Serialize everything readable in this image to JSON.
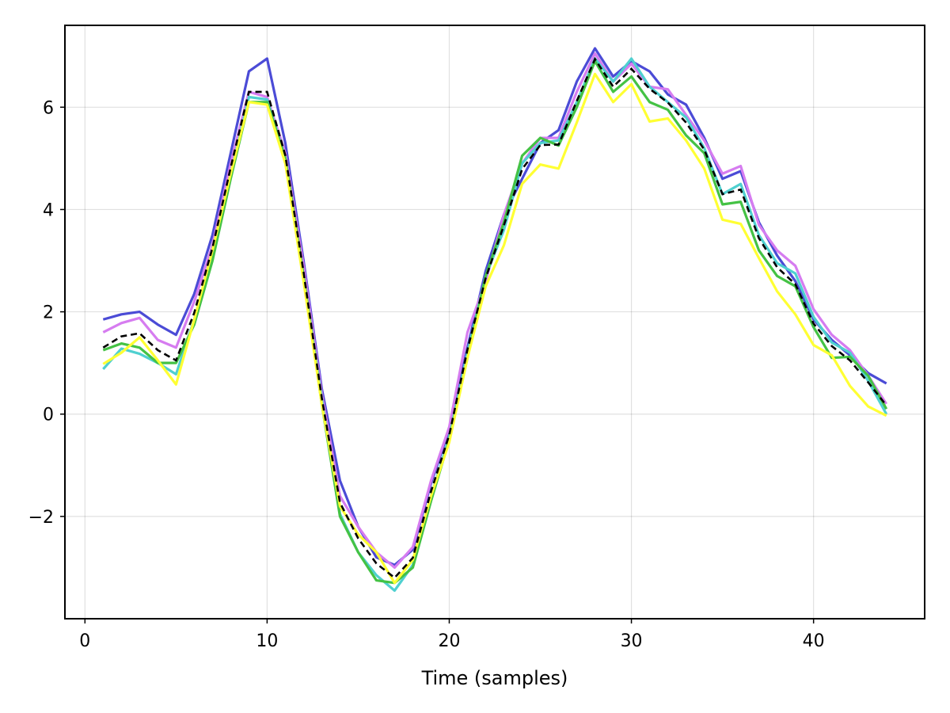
{
  "chart_data": {
    "type": "line",
    "title": "",
    "xlabel": "Time (samples)",
    "ylabel": "",
    "xlim": [
      -1.1,
      46.1
    ],
    "ylim": [
      -4.0,
      7.6
    ],
    "xticks": [
      0,
      10,
      20,
      30,
      40
    ],
    "yticks": [
      -2,
      0,
      2,
      4,
      6
    ],
    "xtick_labels": [
      "0",
      "10",
      "20",
      "30",
      "40"
    ],
    "ytick_labels": [
      "−2",
      "0",
      "2",
      "4",
      "6"
    ],
    "grid": true,
    "x": [
      1,
      2,
      3,
      4,
      5,
      6,
      7,
      8,
      9,
      10,
      11,
      12,
      13,
      14,
      15,
      16,
      17,
      18,
      19,
      20,
      21,
      22,
      23,
      24,
      25,
      26,
      27,
      28,
      29,
      30,
      31,
      32,
      33,
      34,
      35,
      36,
      37,
      38,
      39,
      40,
      41,
      42,
      43,
      44
    ],
    "series": [
      {
        "color": "#4b4bd6",
        "style": "solid",
        "values": [
          1.85,
          1.95,
          2.0,
          1.75,
          1.55,
          2.35,
          3.5,
          5.1,
          6.7,
          6.95,
          5.3,
          3.0,
          0.5,
          -1.3,
          -2.2,
          -2.8,
          -2.95,
          -2.65,
          -1.35,
          -0.3,
          1.3,
          2.8,
          3.9,
          4.6,
          5.3,
          5.55,
          6.5,
          7.15,
          6.6,
          6.9,
          6.7,
          6.25,
          6.05,
          5.4,
          4.6,
          4.75,
          3.75,
          3.1,
          2.6,
          1.85,
          1.45,
          1.15,
          0.8,
          0.6
        ]
      },
      {
        "color": "#d67cf0",
        "style": "solid",
        "values": [
          1.6,
          1.78,
          1.88,
          1.45,
          1.3,
          2.2,
          3.3,
          4.9,
          6.3,
          6.2,
          5.1,
          2.9,
          0.4,
          -1.6,
          -2.2,
          -2.7,
          -3.0,
          -2.6,
          -1.3,
          -0.25,
          1.6,
          2.6,
          3.9,
          4.9,
          5.4,
          5.4,
          6.3,
          7.05,
          6.5,
          6.85,
          6.4,
          6.35,
          5.85,
          5.35,
          4.7,
          4.85,
          3.7,
          3.2,
          2.9,
          2.05,
          1.55,
          1.25,
          0.75,
          0.2
        ]
      },
      {
        "color": "#4fd0d0",
        "style": "solid",
        "values": [
          0.88,
          1.28,
          1.18,
          1.0,
          0.78,
          1.85,
          3.2,
          4.7,
          6.2,
          6.15,
          5.0,
          2.7,
          0.3,
          -1.95,
          -2.7,
          -3.15,
          -3.45,
          -2.95,
          -1.6,
          -0.45,
          1.2,
          2.7,
          3.6,
          4.9,
          5.3,
          5.35,
          6.1,
          6.95,
          6.5,
          6.95,
          6.4,
          6.1,
          5.8,
          5.2,
          4.3,
          4.5,
          3.5,
          2.95,
          2.75,
          1.9,
          1.4,
          1.2,
          0.65,
          0.0
        ]
      },
      {
        "color": "#44c244",
        "style": "solid",
        "values": [
          1.25,
          1.38,
          1.3,
          1.0,
          1.0,
          1.75,
          3.0,
          4.6,
          6.1,
          6.1,
          5.0,
          2.7,
          0.2,
          -2.0,
          -2.7,
          -3.25,
          -3.3,
          -3.0,
          -1.7,
          -0.5,
          1.1,
          2.7,
          3.75,
          5.05,
          5.4,
          5.25,
          6.0,
          6.9,
          6.3,
          6.6,
          6.1,
          5.95,
          5.45,
          5.1,
          4.1,
          4.15,
          3.2,
          2.7,
          2.5,
          1.7,
          1.1,
          1.12,
          0.75,
          0.1
        ]
      },
      {
        "color": "#ffff33",
        "style": "solid",
        "values": [
          0.98,
          1.2,
          1.5,
          1.05,
          0.58,
          1.85,
          3.2,
          4.7,
          6.1,
          6.05,
          4.9,
          2.6,
          0.2,
          -1.8,
          -2.35,
          -2.7,
          -3.3,
          -2.85,
          -1.6,
          -0.55,
          1.1,
          2.5,
          3.3,
          4.5,
          4.88,
          4.8,
          5.7,
          6.65,
          6.1,
          6.45,
          5.72,
          5.78,
          5.35,
          4.8,
          3.8,
          3.72,
          3.05,
          2.4,
          1.95,
          1.35,
          1.15,
          0.55,
          0.15,
          -0.03
        ]
      },
      {
        "color": "#000000",
        "style": "dashed",
        "values": [
          1.3,
          1.52,
          1.58,
          1.25,
          1.05,
          1.98,
          3.25,
          4.82,
          6.3,
          6.3,
          5.06,
          2.78,
          0.32,
          -1.73,
          -2.43,
          -2.92,
          -3.2,
          -2.81,
          -1.51,
          -0.41,
          1.26,
          2.66,
          3.69,
          4.79,
          5.26,
          5.27,
          6.12,
          6.94,
          6.4,
          6.75,
          6.36,
          6.09,
          5.7,
          5.17,
          4.3,
          4.39,
          3.44,
          2.87,
          2.54,
          1.77,
          1.33,
          1.05,
          0.62,
          0.17
        ]
      }
    ]
  }
}
